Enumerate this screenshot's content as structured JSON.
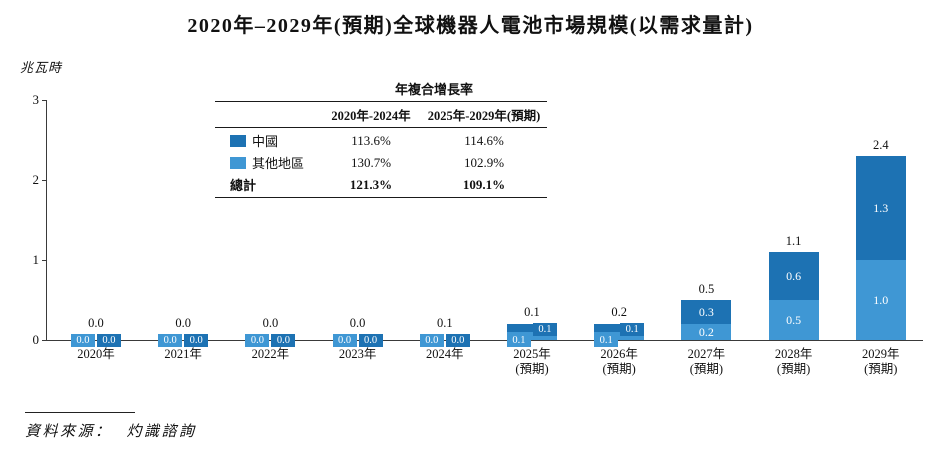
{
  "page": {
    "title": "2020年–2029年(預期)全球機器人電池市場規模(以需求量計)",
    "source_label": "資料來源：",
    "source_value": "灼識諮詢"
  },
  "colors": {
    "china": "#1d72b3",
    "others": "#3f97d4",
    "axis": "#3a3a3a"
  },
  "cagr_table": {
    "title": "年複合增長率",
    "col_headers": [
      "2020年-2024年",
      "2025年-2029年(預期)"
    ],
    "rows": [
      {
        "label": "中國",
        "swatch": "china",
        "bold": false,
        "values": [
          "113.6%",
          "114.6%"
        ]
      },
      {
        "label": "其他地區",
        "swatch": "others",
        "bold": false,
        "values": [
          "130.7%",
          "102.9%"
        ]
      },
      {
        "label": "總計",
        "swatch": null,
        "bold": true,
        "values": [
          "121.3%",
          "109.1%"
        ]
      }
    ]
  },
  "chart_data": {
    "type": "bar",
    "stacked": true,
    "title": "2020年–2029年(預期)全球機器人電池市場規模(以需求量計)",
    "ylabel": "兆瓦時",
    "ylim": [
      0,
      3
    ],
    "yticks": [
      0,
      1,
      2,
      3
    ],
    "grid": false,
    "legend_position": "table-top-center",
    "categories": [
      "2020年",
      "2021年",
      "2022年",
      "2023年",
      "2024年",
      "2025年",
      "2026年",
      "2027年",
      "2028年",
      "2029年"
    ],
    "category_notes": [
      "",
      "",
      "",
      "",
      "",
      "(預期)",
      "(預期)",
      "(預期)",
      "(預期)",
      "(預期)"
    ],
    "series": [
      {
        "name": "中國",
        "color_key": "china",
        "stack_position": "top",
        "values": [
          0.0,
          0.0,
          0.0,
          0.0,
          0.0,
          0.1,
          0.1,
          0.3,
          0.6,
          1.3
        ]
      },
      {
        "name": "其他地區",
        "color_key": "others",
        "stack_position": "bottom",
        "values": [
          0.0,
          0.0,
          0.0,
          0.0,
          0.0,
          0.1,
          0.1,
          0.2,
          0.5,
          1.0
        ]
      }
    ],
    "totals": [
      0.0,
      0.0,
      0.0,
      0.0,
      0.1,
      0.1,
      0.2,
      0.5,
      1.1,
      2.4
    ],
    "label_modes": [
      "chips",
      "chips",
      "chips",
      "chips",
      "chips",
      "chips",
      "chips",
      "inside",
      "inside",
      "inside"
    ]
  }
}
